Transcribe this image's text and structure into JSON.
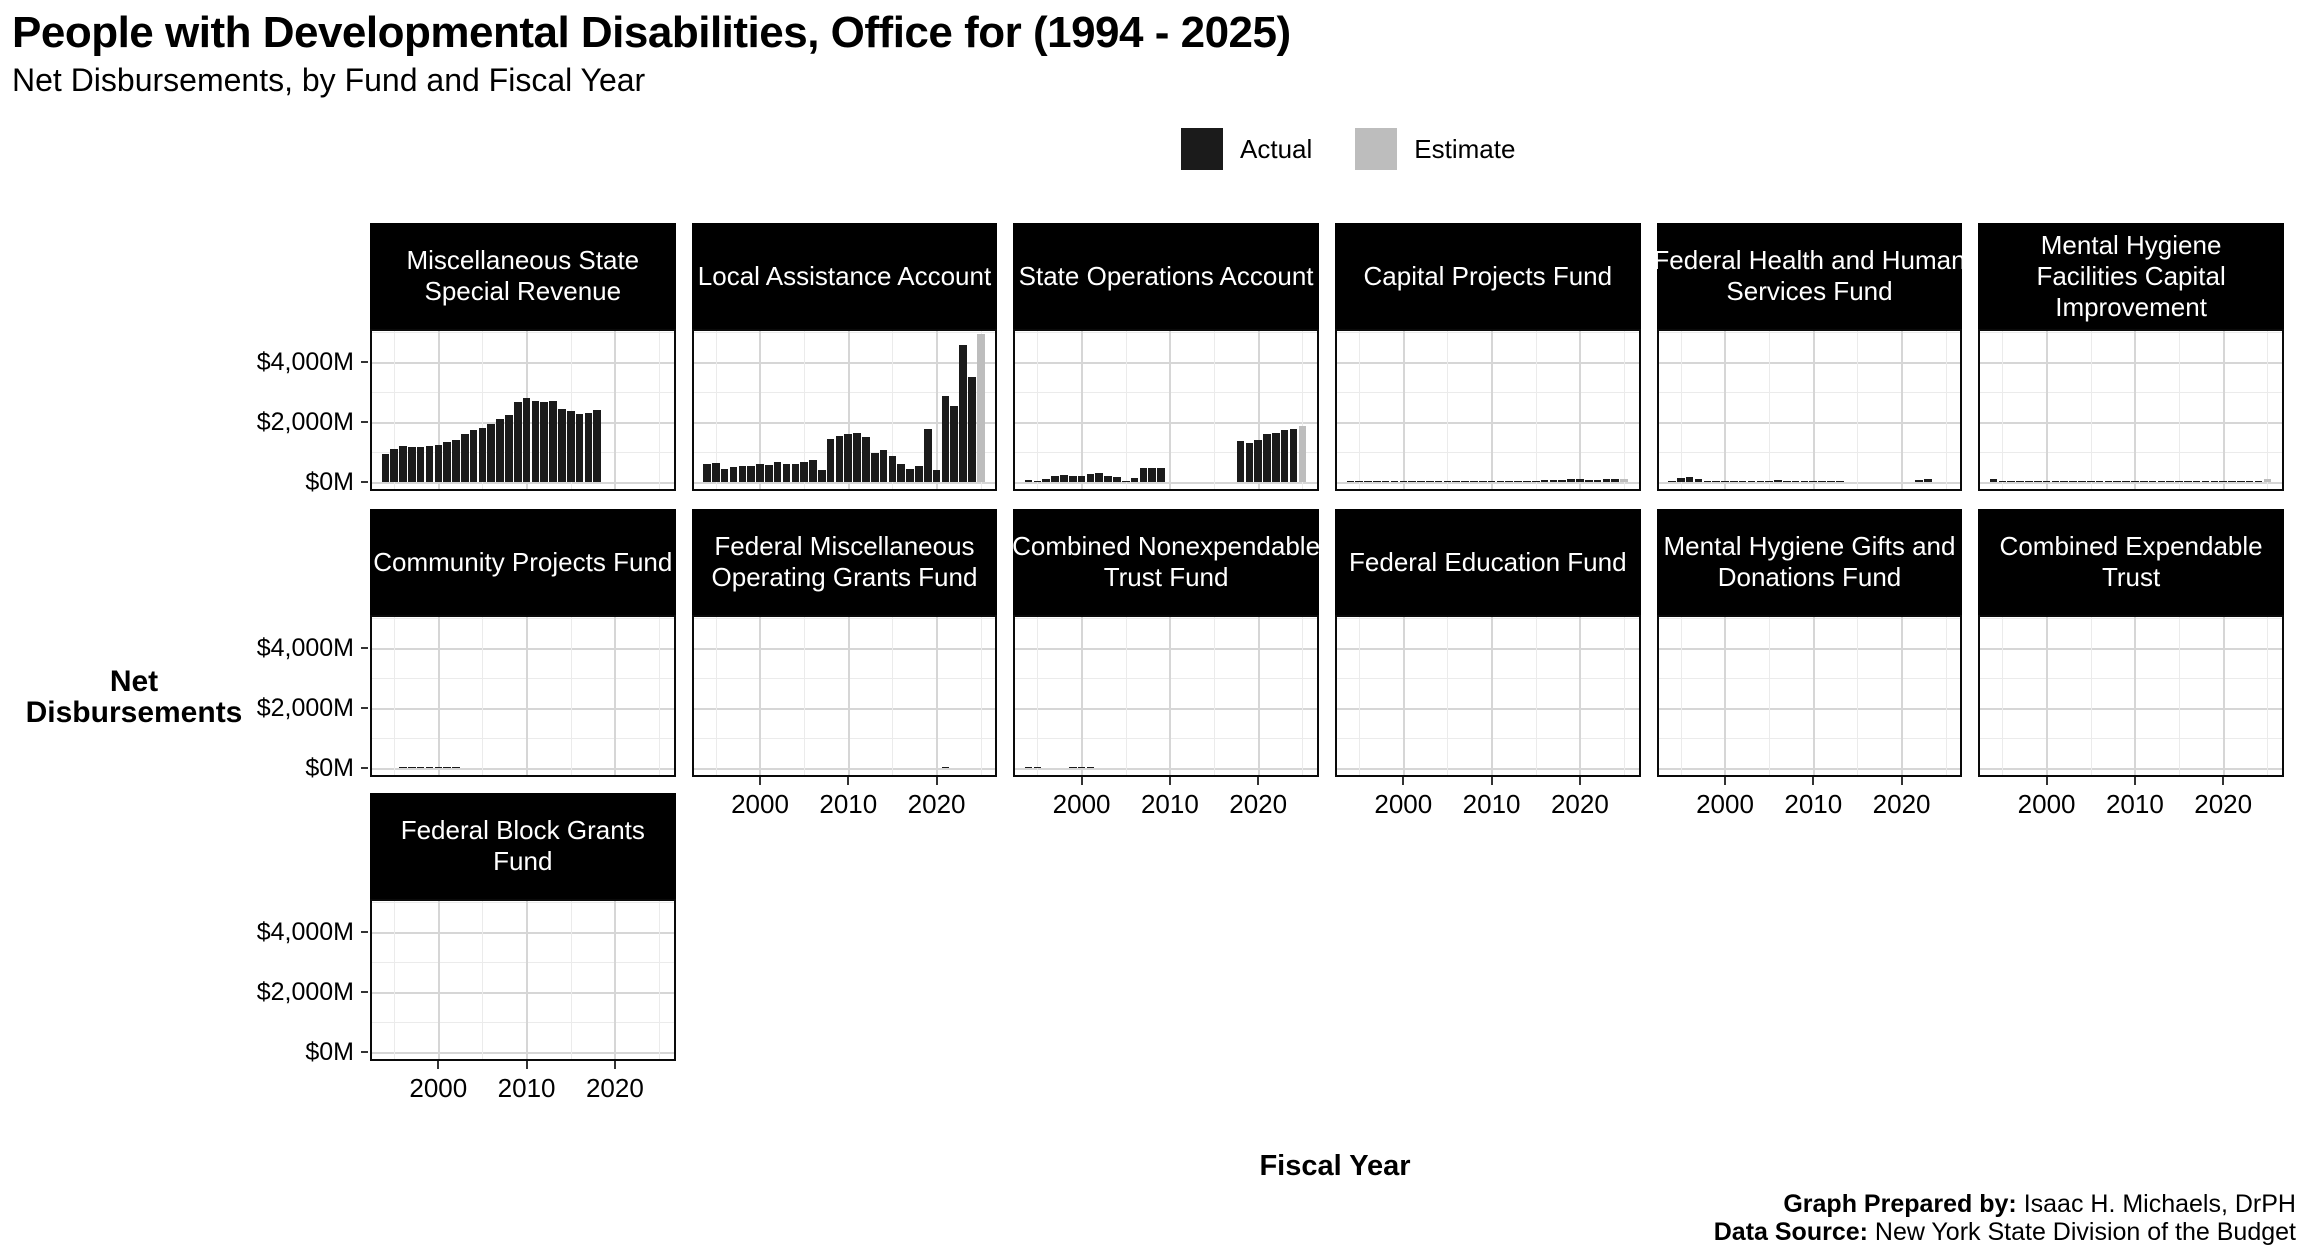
{
  "header": {
    "title": "People with Developmental Disabilities, Office for (1994 - 2025)",
    "subtitle": "Net Disbursements, by Fund and Fiscal Year"
  },
  "legend": {
    "items": [
      {
        "label": "Actual",
        "color": "#1b1b1b"
      },
      {
        "label": "Estimate",
        "color": "#bdbdbd"
      }
    ]
  },
  "y_axis": {
    "title_line1": "Net",
    "title_line2": "Disbursements",
    "tick_labels": [
      "$4,000M",
      "$2,000M",
      "$0M"
    ]
  },
  "x_axis": {
    "title": "Fiscal Year",
    "tick_labels": [
      "2000",
      "2010",
      "2020"
    ]
  },
  "footer": {
    "prepared_by_label": "Graph Prepared by:",
    "prepared_by_value": " Isaac H. Michaels, DrPH",
    "source_label": "Data Source:",
    "source_value": " New York State Division of the Budget"
  },
  "chart_data": {
    "type": "bar",
    "title": "People with Developmental Disabilities, Office for (1994 - 2025)",
    "subtitle": "Net Disbursements, by Fund and Fiscal Year",
    "xlabel": "Fiscal Year",
    "ylabel": "Net Disbursements",
    "units": "millions of dollars",
    "x_domain": [
      1994,
      2025
    ],
    "ylim": [
      0,
      5050
    ],
    "y_major_ticks": [
      0,
      2000,
      4000
    ],
    "y_minor_ticks": [
      1000,
      3000,
      5000
    ],
    "x_major_ticks": [
      2000,
      2010,
      2020
    ],
    "x_minor_ticks": [
      1995,
      2005,
      2015,
      2025
    ],
    "grid": true,
    "legend_position": "top",
    "series_colors": {
      "actual": "#1b1b1b",
      "estimate": "#bdbdbd"
    },
    "facets": [
      {
        "id": "miscellaneous-state-special-revenue",
        "title_lines": [
          "Miscellaneous State",
          "Special Revenue"
        ],
        "row": 0,
        "col": 0,
        "show_x_axis": false,
        "years": [
          1994,
          1995,
          1996,
          1997,
          1998,
          1999,
          2000,
          2001,
          2002,
          2003,
          2004,
          2005,
          2006,
          2007,
          2008,
          2009,
          2010,
          2011,
          2012,
          2013,
          2014,
          2015,
          2016,
          2017,
          2018
        ],
        "values": [
          945,
          1085,
          1195,
          1165,
          1165,
          1185,
          1240,
          1325,
          1400,
          1600,
          1730,
          1815,
          1945,
          2090,
          2220,
          2655,
          2795,
          2710,
          2655,
          2710,
          2435,
          2360,
          2275,
          2305,
          2415
        ],
        "estimate_year": null,
        "estimate_value": null
      },
      {
        "id": "local-assistance-account",
        "title_lines": [
          "Local Assistance Account"
        ],
        "row": 0,
        "col": 1,
        "show_x_axis": false,
        "years": [
          1994,
          1995,
          1996,
          1997,
          1998,
          1999,
          2000,
          2001,
          2002,
          2003,
          2004,
          2005,
          2006,
          2007,
          2008,
          2009,
          2010,
          2011,
          2012,
          2013,
          2014,
          2015,
          2016,
          2017,
          2018,
          2019,
          2020,
          2021,
          2022,
          2023,
          2024
        ],
        "values": [
          615,
          640,
          420,
          495,
          550,
          530,
          585,
          560,
          660,
          605,
          615,
          670,
          725,
          400,
          1430,
          1520,
          1595,
          1640,
          1505,
          955,
          1065,
          870,
          595,
          440,
          540,
          1770,
          405,
          2860,
          2540,
          4575,
          3510
        ],
        "estimate_year": 2025,
        "estimate_value": 4940
      },
      {
        "id": "state-operations-account",
        "title_lines": [
          "State Operations Account"
        ],
        "row": 0,
        "col": 2,
        "show_x_axis": false,
        "years": [
          1994,
          1995,
          1996,
          1997,
          1998,
          1999,
          2000,
          2001,
          2002,
          2003,
          2004,
          2005,
          2006,
          2007,
          2008,
          2009,
          2018,
          2019,
          2020,
          2021,
          2022,
          2023,
          2024
        ],
        "values": [
          80,
          45,
          115,
          195,
          240,
          195,
          195,
          260,
          285,
          195,
          170,
          35,
          150,
          455,
          475,
          475,
          1355,
          1300,
          1395,
          1615,
          1650,
          1725,
          1760
        ],
        "estimate_year": 2025,
        "estimate_value": 1870
      },
      {
        "id": "capital-projects-fund",
        "title_lines": [
          "Capital Projects Fund"
        ],
        "row": 0,
        "col": 3,
        "show_x_axis": false,
        "years": [
          1994,
          1995,
          1996,
          1997,
          1998,
          1999,
          2000,
          2001,
          2002,
          2003,
          2004,
          2005,
          2006,
          2007,
          2008,
          2009,
          2010,
          2011,
          2012,
          2013,
          2014,
          2015,
          2016,
          2017,
          2018,
          2019,
          2020,
          2021,
          2022,
          2023,
          2024
        ],
        "values": [
          35,
          35,
          40,
          40,
          40,
          40,
          40,
          40,
          40,
          40,
          40,
          45,
          45,
          45,
          45,
          45,
          40,
          40,
          40,
          45,
          45,
          50,
          55,
          60,
          80,
          90,
          85,
          65,
          60,
          85,
          90
        ],
        "estimate_year": 2025,
        "estimate_value": 85
      },
      {
        "id": "federal-health-and-human-services-fund",
        "title_lines": [
          "Federal Health and Human",
          "Services Fund"
        ],
        "row": 0,
        "col": 4,
        "show_x_axis": false,
        "years": [
          1994,
          1995,
          1996,
          1997,
          1998,
          1999,
          2000,
          2001,
          2002,
          2003,
          2004,
          2005,
          2006,
          2007,
          2008,
          2009,
          2010,
          2011,
          2012,
          2013,
          2022,
          2023
        ],
        "values": [
          45,
          125,
          175,
          100,
          40,
          40,
          40,
          45,
          45,
          40,
          40,
          40,
          70,
          45,
          40,
          40,
          25,
          20,
          20,
          15,
          55,
          85
        ],
        "estimate_year": null,
        "estimate_value": null
      },
      {
        "id": "mental-hygiene-facilities-capital-improvement",
        "title_lines": [
          "Mental Hygiene",
          "Facilities Capital",
          "Improvement"
        ],
        "row": 0,
        "col": 5,
        "show_x_axis": false,
        "years": [
          1994,
          1995,
          1996,
          1997,
          1998,
          1999,
          2000,
          2001,
          2002,
          2003,
          2004,
          2005,
          2006,
          2007,
          2008,
          2009,
          2010,
          2011,
          2012,
          2013,
          2014,
          2015,
          2016,
          2017,
          2018,
          2019,
          2020,
          2021,
          2022,
          2023,
          2024
        ],
        "values": [
          90,
          50,
          45,
          25,
          20,
          20,
          20,
          20,
          20,
          20,
          20,
          20,
          20,
          20,
          20,
          20,
          20,
          20,
          20,
          20,
          20,
          20,
          20,
          20,
          25,
          35,
          35,
          35,
          35,
          35,
          45
        ],
        "estimate_year": 2025,
        "estimate_value": 90
      },
      {
        "id": "community-projects-fund",
        "title_lines": [
          "Community Projects Fund"
        ],
        "row": 1,
        "col": 0,
        "show_x_axis": false,
        "years": [
          1996,
          1997,
          1998,
          1999,
          2000,
          2001,
          2002
        ],
        "values": [
          10,
          10,
          12,
          15,
          15,
          12,
          10
        ],
        "estimate_year": null,
        "estimate_value": null
      },
      {
        "id": "federal-miscellaneous-operating-grants-fund",
        "title_lines": [
          "Federal Miscellaneous",
          "Operating Grants Fund"
        ],
        "row": 1,
        "col": 1,
        "show_x_axis": true,
        "years": [
          2021
        ],
        "values": [
          25
        ],
        "estimate_year": null,
        "estimate_value": null
      },
      {
        "id": "combined-nonexpendable-trust-fund",
        "title_lines": [
          "Combined Nonexpendable",
          "Trust Fund"
        ],
        "row": 1,
        "col": 2,
        "show_x_axis": true,
        "years": [
          1994,
          1995,
          1999,
          2000,
          2001
        ],
        "values": [
          8,
          8,
          8,
          8,
          8
        ],
        "estimate_year": null,
        "estimate_value": null
      },
      {
        "id": "federal-education-fund",
        "title_lines": [
          "Federal Education Fund"
        ],
        "row": 1,
        "col": 3,
        "show_x_axis": true,
        "years": [],
        "values": [],
        "estimate_year": null,
        "estimate_value": null
      },
      {
        "id": "mental-hygiene-gifts-and-donations-fund",
        "title_lines": [
          "Mental Hygiene Gifts and",
          "Donations Fund"
        ],
        "row": 1,
        "col": 4,
        "show_x_axis": true,
        "years": [],
        "values": [],
        "estimate_year": null,
        "estimate_value": null
      },
      {
        "id": "combined-expendable-trust",
        "title_lines": [
          "Combined Expendable",
          "Trust"
        ],
        "row": 1,
        "col": 5,
        "show_x_axis": true,
        "years": [],
        "values": [],
        "estimate_year": null,
        "estimate_value": null
      },
      {
        "id": "federal-block-grants-fund",
        "title_lines": [
          "Federal Block Grants",
          "Fund"
        ],
        "row": 2,
        "col": 0,
        "show_x_axis": true,
        "years": [],
        "values": [],
        "estimate_year": null,
        "estimate_value": null
      }
    ]
  }
}
